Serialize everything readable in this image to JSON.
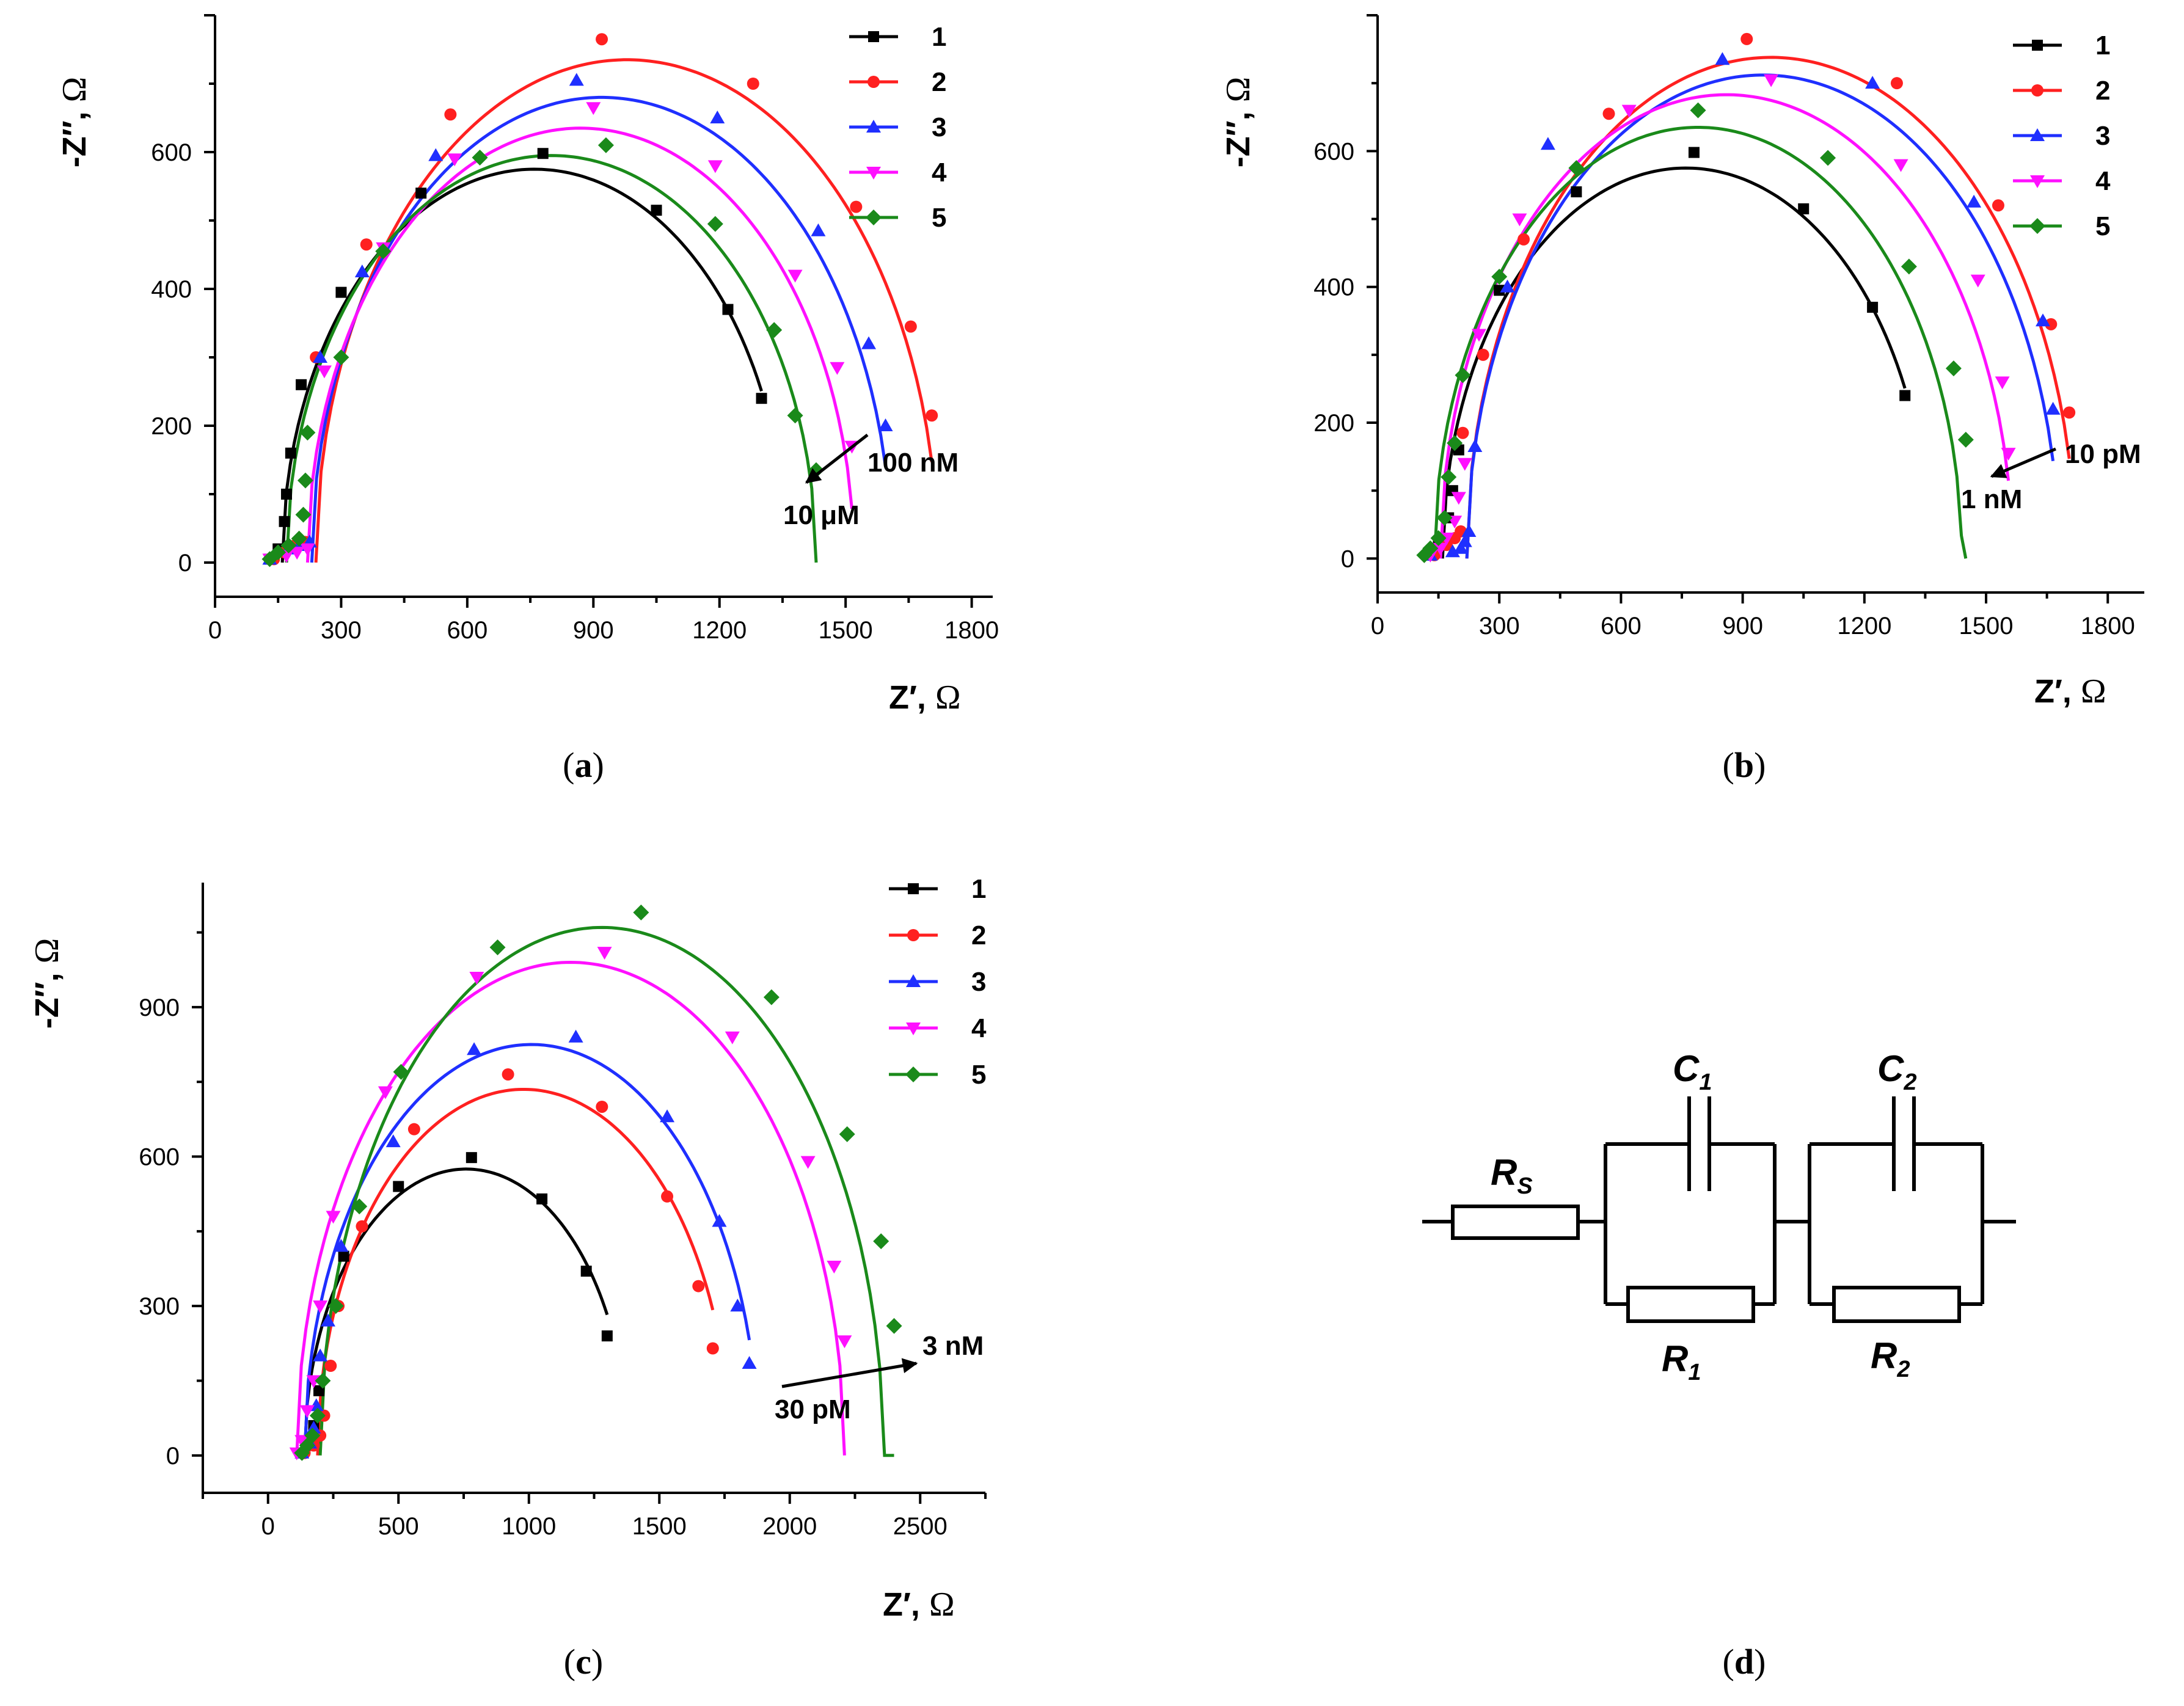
{
  "colors": {
    "1": "#000000",
    "2": "#ff2020",
    "3": "#1f2fff",
    "4": "#ff10ff",
    "5": "#1a8a1a"
  },
  "chart_data": [
    {
      "id": "a",
      "type": "scatter",
      "caption_letter": "a",
      "ylabel": "-Z″,",
      "ylabel_unit": "Ω",
      "xlabel": "Z′,",
      "xlabel_unit": "Ω",
      "xlim": [
        0,
        1850
      ],
      "ylim": [
        -50,
        800
      ],
      "xticks": [
        0,
        300,
        600,
        900,
        1200,
        1500,
        1800
      ],
      "yticks": [
        0,
        200,
        400,
        600
      ],
      "legend": [
        "1",
        "2",
        "3",
        "4",
        "5"
      ],
      "annotation": {
        "from_label": "100 nM",
        "to_label": "10 μM"
      },
      "series": [
        {
          "name": "1",
          "marker": "square",
          "fit": {
            "cx": 760,
            "r": 600,
            "ry": 575
          },
          "points": [
            [
              130,
              5
            ],
            [
              150,
              20
            ],
            [
              165,
              60
            ],
            [
              170,
              100
            ],
            [
              180,
              160
            ],
            [
              205,
              260
            ],
            [
              300,
              395
            ],
            [
              490,
              540
            ],
            [
              780,
              598
            ],
            [
              1050,
              515
            ],
            [
              1220,
              370
            ],
            [
              1300,
              240
            ]
          ]
        },
        {
          "name": "2",
          "marker": "circle",
          "fit": {
            "cx": 980,
            "r": 740,
            "ry": 735
          },
          "points": [
            [
              140,
              5
            ],
            [
              165,
              15
            ],
            [
              190,
              25
            ],
            [
              215,
              30
            ],
            [
              240,
              300
            ],
            [
              360,
              465
            ],
            [
              560,
              655
            ],
            [
              920,
              765
            ],
            [
              1280,
              700
            ],
            [
              1525,
              520
            ],
            [
              1655,
              345
            ],
            [
              1705,
              215
            ]
          ]
        },
        {
          "name": "3",
          "marker": "triangle-up",
          "fit": {
            "cx": 920,
            "r": 690,
            "ry": 680
          },
          "points": [
            [
              130,
              5
            ],
            [
              175,
              20
            ],
            [
              200,
              25
            ],
            [
              225,
              30
            ],
            [
              250,
              300
            ],
            [
              350,
              425
            ],
            [
              525,
              595
            ],
            [
              860,
              705
            ],
            [
              1195,
              650
            ],
            [
              1435,
              485
            ],
            [
              1555,
              320
            ],
            [
              1595,
              200
            ]
          ]
        },
        {
          "name": "4",
          "marker": "triangle-down",
          "fit": {
            "cx": 870,
            "r": 650,
            "ry": 635
          },
          "points": [
            [
              130,
              5
            ],
            [
              170,
              10
            ],
            [
              195,
              15
            ],
            [
              220,
              20
            ],
            [
              260,
              280
            ],
            [
              400,
              460
            ],
            [
              570,
              590
            ],
            [
              900,
              665
            ],
            [
              1190,
              580
            ],
            [
              1380,
              420
            ],
            [
              1480,
              285
            ],
            [
              1515,
              170
            ]
          ]
        },
        {
          "name": "5",
          "marker": "diamond",
          "fit": {
            "cx": 800,
            "r": 630,
            "ry": 595
          },
          "points": [
            [
              130,
              5
            ],
            [
              150,
              15
            ],
            [
              175,
              25
            ],
            [
              200,
              35
            ],
            [
              210,
              70
            ],
            [
              215,
              120
            ],
            [
              220,
              190
            ],
            [
              300,
              300
            ],
            [
              400,
              455
            ],
            [
              630,
              592
            ],
            [
              930,
              610
            ],
            [
              1190,
              495
            ],
            [
              1330,
              340
            ],
            [
              1380,
              215
            ],
            [
              1430,
              135
            ]
          ]
        }
      ]
    },
    {
      "id": "b",
      "type": "scatter",
      "caption_letter": "b",
      "ylabel": "-Z″,",
      "ylabel_unit": "Ω",
      "xlabel": "Z′,",
      "xlabel_unit": "Ω",
      "xlim": [
        0,
        1890
      ],
      "ylim": [
        -50,
        800
      ],
      "xticks": [
        0,
        300,
        600,
        900,
        1200,
        1500,
        1800
      ],
      "yticks": [
        0,
        200,
        400,
        600
      ],
      "legend": [
        "1",
        "2",
        "3",
        "4",
        "5"
      ],
      "annotation": {
        "from_label": "10 pM",
        "to_label": "1 nM"
      },
      "series": [
        {
          "name": "1",
          "marker": "square",
          "fit": {
            "cx": 760,
            "r": 600,
            "ry": 575
          },
          "points": [
            [
              130,
              5
            ],
            [
              150,
              20
            ],
            [
              175,
              60
            ],
            [
              185,
              100
            ],
            [
              200,
              160
            ],
            [
              300,
              395
            ],
            [
              490,
              540
            ],
            [
              780,
              598
            ],
            [
              1050,
              515
            ],
            [
              1220,
              370
            ],
            [
              1300,
              240
            ]
          ]
        },
        {
          "name": "2",
          "marker": "circle",
          "fit": {
            "cx": 970,
            "r": 750,
            "ry": 738
          },
          "points": [
            [
              140,
              5
            ],
            [
              170,
              20
            ],
            [
              190,
              30
            ],
            [
              205,
              40
            ],
            [
              210,
              185
            ],
            [
              260,
              300
            ],
            [
              360,
              470
            ],
            [
              570,
              655
            ],
            [
              910,
              765
            ],
            [
              1280,
              700
            ],
            [
              1530,
              520
            ],
            [
              1660,
              345
            ],
            [
              1705,
              215
            ]
          ]
        },
        {
          "name": "3",
          "marker": "triangle-up",
          "fit": {
            "cx": 950,
            "r": 730,
            "ry": 712
          },
          "points": [
            [
              130,
              5
            ],
            [
              185,
              10
            ],
            [
              205,
              15
            ],
            [
              215,
              25
            ],
            [
              225,
              40
            ],
            [
              240,
              165
            ],
            [
              320,
              400
            ],
            [
              420,
              610
            ],
            [
              850,
              735
            ],
            [
              1220,
              700
            ],
            [
              1470,
              525
            ],
            [
              1640,
              350
            ],
            [
              1665,
              220
            ]
          ]
        },
        {
          "name": "4",
          "marker": "triangle-down",
          "fit": {
            "cx": 860,
            "r": 705,
            "ry": 683
          },
          "points": [
            [
              130,
              5
            ],
            [
              155,
              15
            ],
            [
              170,
              30
            ],
            [
              190,
              55
            ],
            [
              200,
              90
            ],
            [
              215,
              140
            ],
            [
              250,
              330
            ],
            [
              350,
              500
            ],
            [
              620,
              660
            ],
            [
              970,
              705
            ],
            [
              1290,
              580
            ],
            [
              1480,
              410
            ],
            [
              1540,
              260
            ],
            [
              1555,
              155
            ]
          ]
        },
        {
          "name": "5",
          "marker": "diamond",
          "fit": {
            "cx": 790,
            "r": 650,
            "ry": 635
          },
          "points": [
            [
              115,
              5
            ],
            [
              130,
              15
            ],
            [
              150,
              30
            ],
            [
              165,
              60
            ],
            [
              175,
              120
            ],
            [
              190,
              170
            ],
            [
              210,
              270
            ],
            [
              300,
              415
            ],
            [
              490,
              575
            ],
            [
              790,
              660
            ],
            [
              1110,
              590
            ],
            [
              1310,
              430
            ],
            [
              1420,
              280
            ],
            [
              1450,
              175
            ]
          ]
        }
      ]
    },
    {
      "id": "c",
      "type": "scatter",
      "caption_letter": "c",
      "ylabel": "-Z″,",
      "ylabel_unit": "Ω",
      "xlabel": "Z′,",
      "xlabel_unit": "Ω",
      "xlim": [
        -250,
        2750
      ],
      "ylim": [
        -75,
        1150
      ],
      "xticks": [
        0,
        500,
        1000,
        1500,
        2000,
        2500
      ],
      "yticks": [
        0,
        300,
        600,
        900
      ],
      "legend": [
        "1",
        "2",
        "3",
        "4",
        "5"
      ],
      "annotation": {
        "from_label": "30 pM",
        "to_label": "3 nM"
      },
      "series": [
        {
          "name": "1",
          "marker": "square",
          "fit": {
            "cx": 760,
            "r": 620,
            "ry": 575
          },
          "points": [
            [
              130,
              5
            ],
            [
              160,
              20
            ],
            [
              175,
              60
            ],
            [
              195,
              130
            ],
            [
              290,
              400
            ],
            [
              500,
              540
            ],
            [
              780,
              598
            ],
            [
              1050,
              515
            ],
            [
              1220,
              370
            ],
            [
              1300,
              240
            ]
          ]
        },
        {
          "name": "2",
          "marker": "circle",
          "fit": {
            "cx": 980,
            "r": 790,
            "ry": 735
          },
          "points": [
            [
              140,
              5
            ],
            [
              175,
              20
            ],
            [
              200,
              40
            ],
            [
              215,
              80
            ],
            [
              240,
              180
            ],
            [
              270,
              300
            ],
            [
              360,
              460
            ],
            [
              560,
              655
            ],
            [
              920,
              765
            ],
            [
              1280,
              700
            ],
            [
              1530,
              520
            ],
            [
              1650,
              340
            ],
            [
              1705,
              215
            ]
          ]
        },
        {
          "name": "3",
          "marker": "triangle-up",
          "fit": {
            "cx": 1010,
            "r": 870,
            "ry": 825
          },
          "points": [
            [
              130,
              5
            ],
            [
              160,
              25
            ],
            [
              175,
              55
            ],
            [
              185,
              100
            ],
            [
              200,
              200
            ],
            [
              230,
              270
            ],
            [
              280,
              420
            ],
            [
              480,
              630
            ],
            [
              790,
              815
            ],
            [
              1180,
              840
            ],
            [
              1530,
              680
            ],
            [
              1730,
              470
            ],
            [
              1800,
              300
            ],
            [
              1845,
              185
            ]
          ]
        },
        {
          "name": "4",
          "marker": "triangle-down",
          "fit": {
            "cx": 1160,
            "r": 1050,
            "ry": 990
          },
          "points": [
            [
              110,
              5
            ],
            [
              130,
              30
            ],
            [
              150,
              90
            ],
            [
              175,
              150
            ],
            [
              200,
              300
            ],
            [
              250,
              480
            ],
            [
              450,
              730
            ],
            [
              800,
              960
            ],
            [
              1290,
              1010
            ],
            [
              1780,
              840
            ],
            [
              2070,
              590
            ],
            [
              2170,
              380
            ],
            [
              2210,
              230
            ]
          ]
        },
        {
          "name": "5",
          "marker": "diamond",
          "fit": {
            "cx": 1280,
            "r": 1080,
            "ry": 1060
          },
          "points": [
            [
              130,
              5
            ],
            [
              150,
              20
            ],
            [
              170,
              40
            ],
            [
              190,
              80
            ],
            [
              210,
              150
            ],
            [
              260,
              300
            ],
            [
              350,
              500
            ],
            [
              510,
              770
            ],
            [
              880,
              1020
            ],
            [
              1430,
              1090
            ],
            [
              1930,
              920
            ],
            [
              2220,
              645
            ],
            [
              2350,
              430
            ],
            [
              2400,
              260
            ]
          ]
        }
      ]
    }
  ],
  "circuit": {
    "caption_letter": "d",
    "labels": {
      "rs": "R",
      "rs_sub": "S",
      "c1": "C",
      "c1_sub": "1",
      "c2": "C",
      "c2_sub": "2",
      "r1": "R",
      "r1_sub": "1",
      "r2": "R",
      "r2_sub": "2"
    }
  }
}
